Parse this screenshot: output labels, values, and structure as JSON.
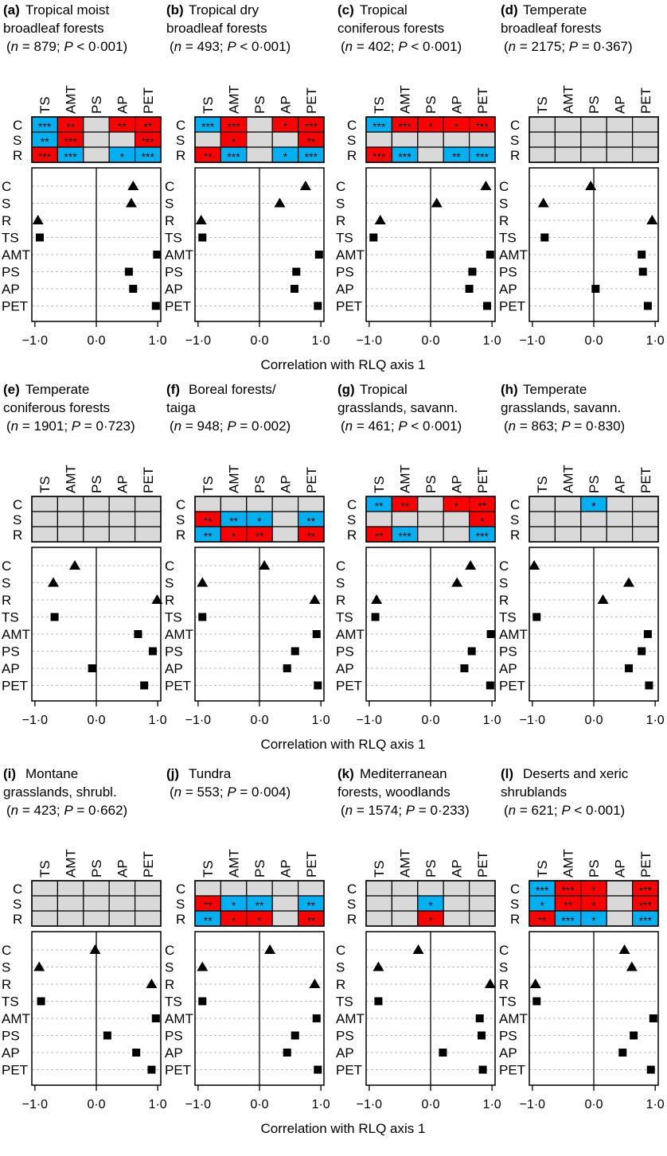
{
  "figure": {
    "xlabel": "Correlation with RLQ axis 1",
    "cols": [
      "TS",
      "AMT",
      "PS",
      "AP",
      "PET"
    ],
    "heat_rows": [
      "C",
      "S",
      "R"
    ],
    "dot_labels": [
      "C",
      "S",
      "R",
      "TS",
      "AMT",
      "PS",
      "AP",
      "PET"
    ],
    "xticks": [
      -1,
      0,
      1
    ],
    "xtick_labels": [
      "−1·0",
      "0·0",
      "1·0"
    ],
    "xlim": [
      -1.05,
      1.05
    ],
    "colors": {
      "positive": "#ff0000",
      "negative": "#00b0f0",
      "nonsignificant": "#d9d9d9"
    },
    "markers": {
      "C": "triangle",
      "S": "triangle",
      "R": "triangle",
      "TS": "square",
      "AMT": "square",
      "PS": "square",
      "AP": "square",
      "PET": "square"
    }
  },
  "chart_data": [
    {
      "type": "heatmap+dotplot",
      "label": "(a)",
      "title": [
        "Tropical moist",
        "broadleaf forests"
      ],
      "n": "879",
      "p": "P < 0·001",
      "heatmap": [
        [
          {
            "c": "neg",
            "s": "***"
          },
          {
            "c": "pos",
            "s": "**"
          },
          {
            "c": "na",
            "s": ""
          },
          {
            "c": "pos",
            "s": "**"
          },
          {
            "c": "pos",
            "s": "**"
          }
        ],
        [
          {
            "c": "neg",
            "s": "**"
          },
          {
            "c": "pos",
            "s": "***"
          },
          {
            "c": "na",
            "s": ""
          },
          {
            "c": "na",
            "s": ""
          },
          {
            "c": "pos",
            "s": "***"
          }
        ],
        [
          {
            "c": "pos",
            "s": "***"
          },
          {
            "c": "neg",
            "s": "***"
          },
          {
            "c": "na",
            "s": ""
          },
          {
            "c": "neg",
            "s": "*"
          },
          {
            "c": "neg",
            "s": "***"
          }
        ]
      ],
      "values": [
        0.6,
        0.57,
        -0.95,
        -0.92,
        0.99,
        0.53,
        0.6,
        0.97
      ]
    },
    {
      "type": "heatmap+dotplot",
      "label": "(b)",
      "title": [
        "Tropical dry",
        "broadleaf forests"
      ],
      "n": "493",
      "p": "P < 0·001",
      "heatmap": [
        [
          {
            "c": "neg",
            "s": "***"
          },
          {
            "c": "pos",
            "s": "***"
          },
          {
            "c": "na",
            "s": ""
          },
          {
            "c": "pos",
            "s": "*"
          },
          {
            "c": "pos",
            "s": "***"
          }
        ],
        [
          {
            "c": "na",
            "s": ""
          },
          {
            "c": "pos",
            "s": "*"
          },
          {
            "c": "na",
            "s": ""
          },
          {
            "c": "na",
            "s": ""
          },
          {
            "c": "pos",
            "s": "**"
          }
        ],
        [
          {
            "c": "pos",
            "s": "**"
          },
          {
            "c": "neg",
            "s": "***"
          },
          {
            "c": "na",
            "s": ""
          },
          {
            "c": "neg",
            "s": "*"
          },
          {
            "c": "neg",
            "s": "***"
          }
        ]
      ],
      "values": [
        0.75,
        0.33,
        -0.95,
        -0.93,
        0.97,
        0.6,
        0.57,
        0.95
      ]
    },
    {
      "type": "heatmap+dotplot",
      "label": "(c)",
      "title": [
        "Tropical",
        "coniferous forests"
      ],
      "n": "402",
      "p": "P < 0·001",
      "heatmap": [
        [
          {
            "c": "neg",
            "s": "***"
          },
          {
            "c": "pos",
            "s": "***"
          },
          {
            "c": "pos",
            "s": "*"
          },
          {
            "c": "pos",
            "s": "*"
          },
          {
            "c": "pos",
            "s": "***"
          }
        ],
        [
          {
            "c": "na",
            "s": ""
          },
          {
            "c": "na",
            "s": ""
          },
          {
            "c": "na",
            "s": ""
          },
          {
            "c": "na",
            "s": ""
          },
          {
            "c": "na",
            "s": ""
          }
        ],
        [
          {
            "c": "pos",
            "s": "***"
          },
          {
            "c": "neg",
            "s": "***"
          },
          {
            "c": "na",
            "s": ""
          },
          {
            "c": "neg",
            "s": "**"
          },
          {
            "c": "neg",
            "s": "***"
          }
        ]
      ],
      "values": [
        0.9,
        0.1,
        -0.82,
        -0.93,
        0.97,
        0.68,
        0.63,
        0.92
      ]
    },
    {
      "type": "heatmap+dotplot",
      "label": "(d)",
      "title": [
        "Temperate",
        "broadleaf forests"
      ],
      "n": "2175",
      "p": "P = 0·367",
      "heatmap": [
        [
          {
            "c": "na",
            "s": ""
          },
          {
            "c": "na",
            "s": ""
          },
          {
            "c": "na",
            "s": ""
          },
          {
            "c": "na",
            "s": ""
          },
          {
            "c": "na",
            "s": ""
          }
        ],
        [
          {
            "c": "na",
            "s": ""
          },
          {
            "c": "na",
            "s": ""
          },
          {
            "c": "na",
            "s": ""
          },
          {
            "c": "na",
            "s": ""
          },
          {
            "c": "na",
            "s": ""
          }
        ],
        [
          {
            "c": "na",
            "s": ""
          },
          {
            "c": "na",
            "s": ""
          },
          {
            "c": "na",
            "s": ""
          },
          {
            "c": "na",
            "s": ""
          },
          {
            "c": "na",
            "s": ""
          }
        ]
      ],
      "values": [
        -0.05,
        -0.82,
        0.95,
        -0.8,
        0.78,
        0.8,
        0.03,
        0.88
      ]
    },
    {
      "type": "heatmap+dotplot",
      "label": "(e)",
      "title": [
        "Temperate",
        "coniferous forests"
      ],
      "n": "1901",
      "p": "P = 0·723",
      "heatmap": [
        [
          {
            "c": "na",
            "s": ""
          },
          {
            "c": "na",
            "s": ""
          },
          {
            "c": "na",
            "s": ""
          },
          {
            "c": "na",
            "s": ""
          },
          {
            "c": "na",
            "s": ""
          }
        ],
        [
          {
            "c": "na",
            "s": ""
          },
          {
            "c": "na",
            "s": ""
          },
          {
            "c": "na",
            "s": ""
          },
          {
            "c": "na",
            "s": ""
          },
          {
            "c": "na",
            "s": ""
          }
        ],
        [
          {
            "c": "na",
            "s": ""
          },
          {
            "c": "na",
            "s": ""
          },
          {
            "c": "na",
            "s": ""
          },
          {
            "c": "na",
            "s": ""
          },
          {
            "c": "na",
            "s": ""
          }
        ]
      ],
      "values": [
        -0.35,
        -0.7,
        0.99,
        -0.68,
        0.68,
        0.92,
        -0.07,
        0.78
      ]
    },
    {
      "type": "heatmap+dotplot",
      "label": "(f)",
      "title": [
        "Boreal forests/",
        "taiga"
      ],
      "n": "948",
      "p": "P = 0·002",
      "heatmap": [
        [
          {
            "c": "na",
            "s": ""
          },
          {
            "c": "na",
            "s": ""
          },
          {
            "c": "na",
            "s": ""
          },
          {
            "c": "na",
            "s": ""
          },
          {
            "c": "na",
            "s": ""
          }
        ],
        [
          {
            "c": "pos",
            "s": "**"
          },
          {
            "c": "neg",
            "s": "**"
          },
          {
            "c": "neg",
            "s": "*"
          },
          {
            "c": "na",
            "s": ""
          },
          {
            "c": "neg",
            "s": "**"
          }
        ],
        [
          {
            "c": "neg",
            "s": "**"
          },
          {
            "c": "pos",
            "s": "*"
          },
          {
            "c": "pos",
            "s": "**"
          },
          {
            "c": "na",
            "s": ""
          },
          {
            "c": "pos",
            "s": "**"
          }
        ]
      ],
      "values": [
        0.08,
        -0.93,
        0.9,
        -0.93,
        0.93,
        0.58,
        0.45,
        0.95
      ]
    },
    {
      "type": "heatmap+dotplot",
      "label": "(g)",
      "title": [
        "Tropical",
        "grasslands, savann."
      ],
      "n": "461",
      "p": "P < 0·001",
      "heatmap": [
        [
          {
            "c": "neg",
            "s": "**"
          },
          {
            "c": "pos",
            "s": "**"
          },
          {
            "c": "na",
            "s": ""
          },
          {
            "c": "pos",
            "s": "*"
          },
          {
            "c": "pos",
            "s": "**"
          }
        ],
        [
          {
            "c": "na",
            "s": ""
          },
          {
            "c": "na",
            "s": ""
          },
          {
            "c": "na",
            "s": ""
          },
          {
            "c": "na",
            "s": ""
          },
          {
            "c": "pos",
            "s": "*"
          }
        ],
        [
          {
            "c": "pos",
            "s": "**"
          },
          {
            "c": "neg",
            "s": "***"
          },
          {
            "c": "na",
            "s": ""
          },
          {
            "c": "na",
            "s": ""
          },
          {
            "c": "neg",
            "s": "***"
          }
        ]
      ],
      "values": [
        0.65,
        0.43,
        -0.88,
        -0.9,
        0.98,
        0.67,
        0.55,
        0.97
      ]
    },
    {
      "type": "heatmap+dotplot",
      "label": "(h)",
      "title": [
        "Temperate",
        "grasslands, savann."
      ],
      "n": "863",
      "p": "P = 0·830",
      "heatmap": [
        [
          {
            "c": "na",
            "s": ""
          },
          {
            "c": "na",
            "s": ""
          },
          {
            "c": "neg",
            "s": "*"
          },
          {
            "c": "na",
            "s": ""
          },
          {
            "c": "na",
            "s": ""
          }
        ],
        [
          {
            "c": "na",
            "s": ""
          },
          {
            "c": "na",
            "s": ""
          },
          {
            "c": "na",
            "s": ""
          },
          {
            "c": "na",
            "s": ""
          },
          {
            "c": "na",
            "s": ""
          }
        ],
        [
          {
            "c": "na",
            "s": ""
          },
          {
            "c": "na",
            "s": ""
          },
          {
            "c": "na",
            "s": ""
          },
          {
            "c": "na",
            "s": ""
          },
          {
            "c": "na",
            "s": ""
          }
        ]
      ],
      "values": [
        -0.97,
        0.57,
        0.15,
        -0.93,
        0.88,
        0.78,
        0.57,
        0.9
      ]
    },
    {
      "type": "heatmap+dotplot",
      "label": "(i)",
      "title": [
        "Montane",
        "grasslands, shrubl."
      ],
      "n": "423",
      "p": "P = 0·662",
      "heatmap": [
        [
          {
            "c": "na",
            "s": ""
          },
          {
            "c": "na",
            "s": ""
          },
          {
            "c": "na",
            "s": ""
          },
          {
            "c": "na",
            "s": ""
          },
          {
            "c": "na",
            "s": ""
          }
        ],
        [
          {
            "c": "na",
            "s": ""
          },
          {
            "c": "na",
            "s": ""
          },
          {
            "c": "na",
            "s": ""
          },
          {
            "c": "na",
            "s": ""
          },
          {
            "c": "na",
            "s": ""
          }
        ],
        [
          {
            "c": "na",
            "s": ""
          },
          {
            "c": "na",
            "s": ""
          },
          {
            "c": "na",
            "s": ""
          },
          {
            "c": "na",
            "s": ""
          },
          {
            "c": "na",
            "s": ""
          }
        ]
      ],
      "values": [
        -0.02,
        -0.93,
        0.9,
        -0.9,
        0.97,
        0.18,
        0.65,
        0.9
      ]
    },
    {
      "type": "heatmap+dotplot",
      "label": "(j)",
      "title": [
        "Tundra"
      ],
      "n": "553",
      "p": "P = 0·004",
      "heatmap": [
        [
          {
            "c": "na",
            "s": ""
          },
          {
            "c": "na",
            "s": ""
          },
          {
            "c": "na",
            "s": ""
          },
          {
            "c": "na",
            "s": ""
          },
          {
            "c": "na",
            "s": ""
          }
        ],
        [
          {
            "c": "pos",
            "s": "**"
          },
          {
            "c": "neg",
            "s": "*"
          },
          {
            "c": "neg",
            "s": "**"
          },
          {
            "c": "na",
            "s": ""
          },
          {
            "c": "neg",
            "s": "**"
          }
        ],
        [
          {
            "c": "neg",
            "s": "**"
          },
          {
            "c": "pos",
            "s": "*"
          },
          {
            "c": "pos",
            "s": "*"
          },
          {
            "c": "na",
            "s": ""
          },
          {
            "c": "pos",
            "s": "**"
          }
        ]
      ],
      "values": [
        0.17,
        -0.93,
        0.9,
        -0.93,
        0.93,
        0.58,
        0.45,
        0.95
      ]
    },
    {
      "type": "heatmap+dotplot",
      "label": "(k)",
      "title": [
        "Mediterranean",
        "forests, woodlands"
      ],
      "n": "1574",
      "p": "P = 0·233",
      "heatmap": [
        [
          {
            "c": "na",
            "s": ""
          },
          {
            "c": "na",
            "s": ""
          },
          {
            "c": "na",
            "s": ""
          },
          {
            "c": "na",
            "s": ""
          },
          {
            "c": "na",
            "s": ""
          }
        ],
        [
          {
            "c": "na",
            "s": ""
          },
          {
            "c": "na",
            "s": ""
          },
          {
            "c": "neg",
            "s": "*"
          },
          {
            "c": "na",
            "s": ""
          },
          {
            "c": "na",
            "s": ""
          }
        ],
        [
          {
            "c": "na",
            "s": ""
          },
          {
            "c": "na",
            "s": ""
          },
          {
            "c": "pos",
            "s": "*"
          },
          {
            "c": "na",
            "s": ""
          },
          {
            "c": "na",
            "s": ""
          }
        ]
      ],
      "values": [
        -0.2,
        -0.85,
        0.97,
        -0.85,
        0.8,
        0.83,
        0.2,
        0.85
      ]
    },
    {
      "type": "heatmap+dotplot",
      "label": "(l)",
      "title": [
        "Deserts and xeric",
        "shrublands"
      ],
      "n": "621",
      "p": "P < 0·001",
      "heatmap": [
        [
          {
            "c": "neg",
            "s": "***"
          },
          {
            "c": "pos",
            "s": "***"
          },
          {
            "c": "pos",
            "s": "*"
          },
          {
            "c": "na",
            "s": ""
          },
          {
            "c": "pos",
            "s": "***"
          }
        ],
        [
          {
            "c": "neg",
            "s": "*"
          },
          {
            "c": "pos",
            "s": "**"
          },
          {
            "c": "pos",
            "s": "*"
          },
          {
            "c": "na",
            "s": ""
          },
          {
            "c": "pos",
            "s": "***"
          }
        ],
        [
          {
            "c": "pos",
            "s": "**"
          },
          {
            "c": "neg",
            "s": "***"
          },
          {
            "c": "neg",
            "s": "*"
          },
          {
            "c": "na",
            "s": ""
          },
          {
            "c": "neg",
            "s": "***"
          }
        ]
      ],
      "values": [
        0.5,
        0.62,
        -0.95,
        -0.93,
        0.97,
        0.65,
        0.47,
        0.93
      ]
    }
  ]
}
